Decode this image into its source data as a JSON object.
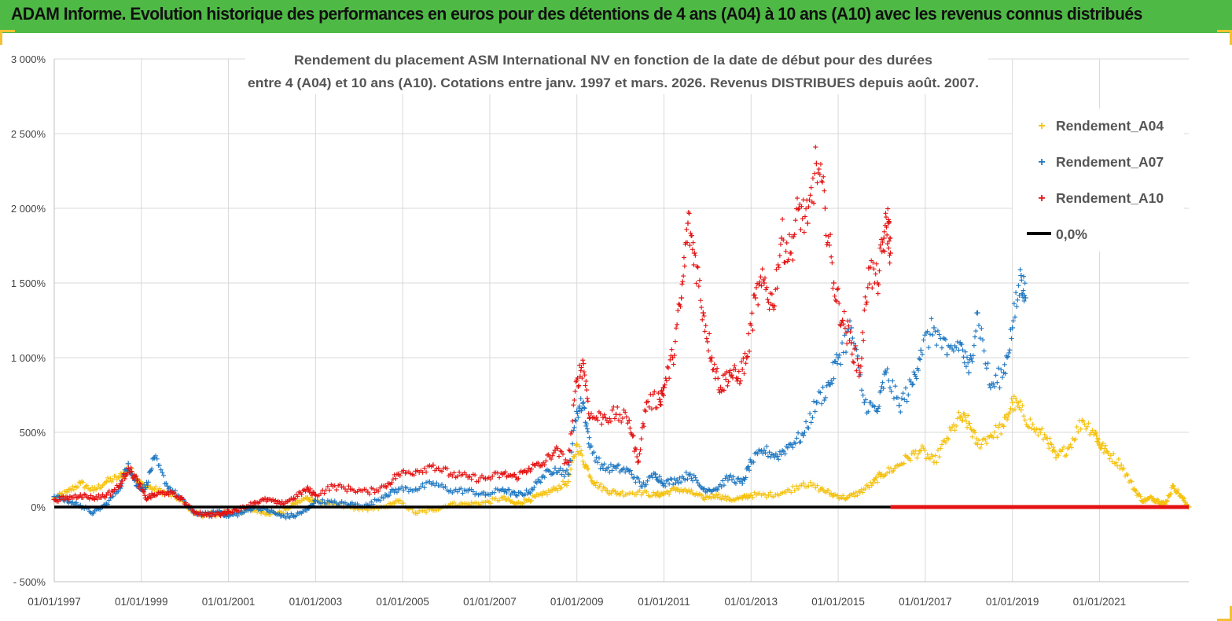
{
  "header": {
    "title": "ADAM Informe. Evolution historique des performances en euros pour des détentions de 4 ans (A04) à 10 ans (A10) avec les revenus connus distribués"
  },
  "colors": {
    "banner": "#4fb946",
    "frame": "#f2c232",
    "a04": "#f5c20f",
    "a07": "#1f78c1",
    "a10": "#e41212",
    "zero_line": "#000000",
    "grid": "#d9d9d9"
  },
  "chart_data": {
    "type": "scatter",
    "title_lines": [
      "Rendement du placement ASM International NV en fonction de la date de début pour des durées",
      "entre 4 (A04) et 10 ans (A10). Cotations entre janv. 1997 et mars. 2026. Revenus DISTRIBUES depuis août. 2007."
    ],
    "x_domain": [
      1997.0,
      2023.05
    ],
    "ylim": [
      -500,
      3000
    ],
    "yticks": [
      -500,
      0,
      500,
      1000,
      1500,
      2000,
      2500,
      3000
    ],
    "ytick_labels": [
      "- 500%",
      "0%",
      "500%",
      "1 000%",
      "1 500%",
      "2 000%",
      "2 500%",
      "3 000%"
    ],
    "xticks": [
      1997,
      1999,
      2001,
      2003,
      2005,
      2007,
      2009,
      2011,
      2013,
      2015,
      2017,
      2019,
      2021
    ],
    "xtick_labels": [
      "01/01/1997",
      "01/01/1999",
      "01/01/2001",
      "01/01/2003",
      "01/01/2005",
      "01/01/2007",
      "01/01/2009",
      "01/01/2011",
      "01/01/2013",
      "01/01/2015",
      "01/01/2017",
      "01/01/2019",
      "01/01/2021"
    ],
    "legend_position": "top-right",
    "series": [
      {
        "name": "Rendement_A04",
        "marker": "+",
        "x": [
          1997.0,
          1997.3,
          1997.6,
          1997.9,
          1998.2,
          1998.5,
          1998.7,
          1998.9,
          1999.0,
          1999.3,
          1999.6,
          1999.9,
          2000.2,
          2000.5,
          2000.8,
          2001.0,
          2001.3,
          2001.6,
          2001.9,
          2002.2,
          2002.5,
          2002.8,
          2003.0,
          2003.4,
          2003.8,
          2004.2,
          2004.6,
          2004.9,
          2005.3,
          2005.7,
          2006.1,
          2006.5,
          2006.9,
          2007.3,
          2007.6,
          2007.9,
          2008.2,
          2008.5,
          2008.8,
          2009.0,
          2009.2,
          2009.4,
          2009.7,
          2010.0,
          2010.4,
          2010.8,
          2011.0,
          2011.3,
          2011.6,
          2011.9,
          2012.2,
          2012.5,
          2012.8,
          2013.0,
          2013.4,
          2013.8,
          2014.2,
          2014.6,
          2014.9,
          2015.2,
          2015.5,
          2015.8,
          2016.0,
          2016.3,
          2016.6,
          2016.9,
          2017.2,
          2017.5,
          2017.8,
          2018.0,
          2018.2,
          2018.5,
          2018.8,
          2019.0,
          2019.2,
          2019.5,
          2019.8,
          2020.0,
          2020.3,
          2020.6,
          2020.9,
          2021.0,
          2021.2,
          2021.5,
          2021.8,
          2022.0,
          2022.2,
          2022.35,
          2022.5,
          2022.7,
          2022.9,
          2023.05
        ],
        "y": [
          60,
          100,
          160,
          110,
          170,
          200,
          260,
          190,
          150,
          120,
          90,
          50,
          -40,
          -55,
          -45,
          -40,
          -30,
          -20,
          -40,
          -40,
          20,
          60,
          40,
          20,
          0,
          -20,
          0,
          40,
          -40,
          -20,
          20,
          20,
          30,
          60,
          20,
          50,
          80,
          120,
          170,
          420,
          280,
          160,
          110,
          90,
          100,
          80,
          90,
          120,
          100,
          60,
          80,
          50,
          60,
          80,
          80,
          100,
          160,
          120,
          80,
          60,
          100,
          160,
          220,
          260,
          330,
          380,
          300,
          460,
          600,
          560,
          420,
          480,
          540,
          700,
          650,
          520,
          460,
          330,
          400,
          580,
          500,
          420,
          360,
          280,
          120,
          40,
          60,
          40,
          20,
          140,
          60,
          0
        ]
      },
      {
        "name": "Rendement_A07",
        "marker": "+",
        "x": [
          1997.0,
          1997.3,
          1997.6,
          1997.9,
          1998.2,
          1998.5,
          1998.7,
          1998.9,
          1999.1,
          1999.3,
          1999.6,
          1999.9,
          2000.2,
          2000.5,
          2000.8,
          2001.0,
          2001.3,
          2001.6,
          2001.9,
          2002.2,
          2002.5,
          2002.8,
          2003.0,
          2003.4,
          2003.8,
          2004.2,
          2004.6,
          2004.9,
          2005.3,
          2005.7,
          2006.1,
          2006.5,
          2006.9,
          2007.3,
          2007.6,
          2007.9,
          2008.2,
          2008.5,
          2008.8,
          2009.0,
          2009.15,
          2009.3,
          2009.6,
          2009.9,
          2010.2,
          2010.5,
          2010.8,
          2011.0,
          2011.3,
          2011.6,
          2011.9,
          2012.2,
          2012.5,
          2012.8,
          2013.0,
          2013.3,
          2013.6,
          2013.9,
          2014.2,
          2014.5,
          2014.8,
          2015.0,
          2015.3,
          2015.6,
          2015.9,
          2016.1,
          2016.4,
          2016.7,
          2016.9,
          2017.2,
          2017.5,
          2017.8,
          2018.0,
          2018.2,
          2018.5,
          2018.8,
          2019.0,
          2019.2,
          2019.3
        ],
        "y": [
          70,
          40,
          10,
          -40,
          20,
          130,
          290,
          140,
          130,
          330,
          140,
          60,
          -40,
          -50,
          -30,
          -60,
          -40,
          0,
          -20,
          -60,
          -60,
          -20,
          40,
          30,
          20,
          10,
          80,
          120,
          120,
          160,
          110,
          110,
          80,
          120,
          80,
          100,
          200,
          260,
          220,
          640,
          700,
          400,
          260,
          260,
          240,
          140,
          220,
          160,
          180,
          220,
          120,
          120,
          200,
          160,
          300,
          380,
          340,
          420,
          480,
          700,
          820,
          1000,
          1200,
          700,
          640,
          900,
          680,
          820,
          1050,
          1200,
          1020,
          1100,
          900,
          1300,
          800,
          900,
          1200,
          1550,
          1400
        ]
      },
      {
        "name": "Rendement_A10",
        "marker": "+",
        "x": [
          1997.0,
          1997.3,
          1997.6,
          1997.9,
          1998.2,
          1998.5,
          1998.7,
          1998.9,
          1999.1,
          1999.3,
          1999.6,
          1999.9,
          2000.2,
          2000.5,
          2000.8,
          2001.0,
          2001.3,
          2001.6,
          2001.9,
          2002.2,
          2002.5,
          2002.8,
          2003.0,
          2003.4,
          2003.8,
          2004.2,
          2004.6,
          2004.9,
          2005.3,
          2005.7,
          2006.1,
          2006.5,
          2006.9,
          2007.3,
          2007.6,
          2007.9,
          2008.2,
          2008.5,
          2008.8,
          2009.0,
          2009.15,
          2009.3,
          2009.6,
          2009.9,
          2010.2,
          2010.4,
          2010.6,
          2010.9,
          2011.0,
          2011.2,
          2011.4,
          2011.55,
          2011.7,
          2011.9,
          2012.1,
          2012.3,
          2012.5,
          2012.7,
          2012.9,
          2013.1,
          2013.3,
          2013.5,
          2013.7,
          2013.9,
          2014.1,
          2014.3,
          2014.5,
          2014.7,
          2014.9,
          2015.1,
          2015.3,
          2015.5,
          2015.7,
          2015.9,
          2016.05,
          2016.15,
          2016.2
        ],
        "y": [
          50,
          60,
          80,
          60,
          80,
          140,
          260,
          180,
          60,
          80,
          100,
          60,
          -30,
          -50,
          -50,
          -30,
          -10,
          30,
          50,
          20,
          60,
          120,
          80,
          140,
          120,
          100,
          140,
          220,
          240,
          280,
          220,
          200,
          190,
          220,
          200,
          260,
          280,
          380,
          300,
          850,
          960,
          600,
          600,
          620,
          580,
          300,
          700,
          720,
          800,
          1000,
          1400,
          1900,
          1700,
          1300,
          1000,
          800,
          900,
          860,
          1000,
          1400,
          1500,
          1350,
          1800,
          1700,
          2000,
          1900,
          2300,
          2000,
          1500,
          1250,
          1100,
          900,
          1600,
          1500,
          1800,
          1900,
          1700
        ]
      },
      {
        "name": "0,0%",
        "marker": "line"
      }
    ]
  }
}
